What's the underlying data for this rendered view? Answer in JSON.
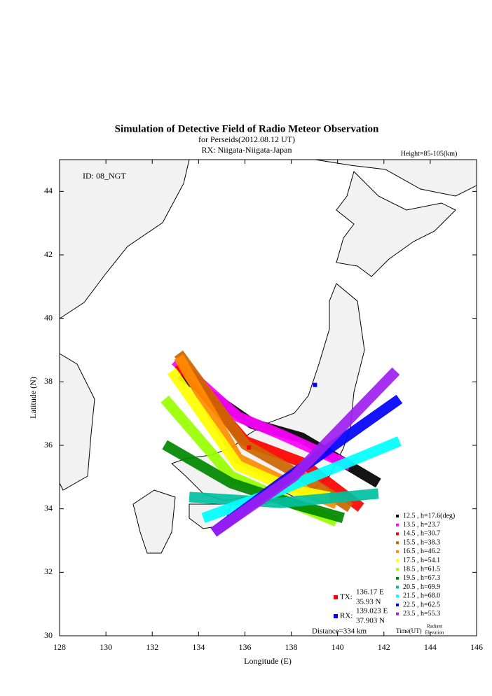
{
  "chart_data": {
    "type": "map",
    "title": "Simulation of Detective Field of Radio Meteor Observation",
    "subtitle": "for Perseids(2012.08.12 UT)",
    "rx_site": "RX: Niigata-Niigata-Japan",
    "height_note": "Height=85-105(km)",
    "id_label": "ID: 08_NGT",
    "x_label": "Longitude (E)",
    "y_label": "Latitude (N)",
    "xlim": [
      128,
      146
    ],
    "ylim": [
      30,
      45
    ],
    "xticks": [
      128,
      130,
      132,
      134,
      136,
      138,
      140,
      142,
      144,
      146
    ],
    "yticks": [
      30,
      32,
      34,
      36,
      38,
      40,
      42,
      44
    ],
    "series": [
      {
        "name": "12.5 , h=17.6(deg)",
        "color": "#000000",
        "lon": [
          133.23,
          136.32,
          138.44,
          141.76
        ],
        "lat": [
          38.23,
          36.68,
          36.24,
          34.81
        ]
      },
      {
        "name": "13.5 , h=23.7",
        "color": "#ff00ff",
        "lon": [
          132.99,
          135.71,
          137.53,
          140.55
        ],
        "lat": [
          38.67,
          36.9,
          36.35,
          35.36
        ]
      },
      {
        "name": "14.5 , h=30.7",
        "color": "#ff0000",
        "lon": [
          133.14,
          136.02,
          138.44,
          141.01
        ],
        "lat": [
          38.56,
          36.13,
          35.47,
          34.04
        ]
      },
      {
        "name": "15.5 , h=38.3",
        "color": "#cc6600",
        "lon": [
          133.14,
          136.02,
          138.44,
          140.55
        ],
        "lat": [
          38.89,
          36.02,
          35.03,
          34.04
        ]
      },
      {
        "name": "16.5 , h=46.2",
        "color": "#ff8c00",
        "lon": [
          133.14,
          135.71,
          138.13,
          139.95
        ],
        "lat": [
          38.78,
          35.58,
          34.7,
          34.15
        ]
      },
      {
        "name": "17.5 , h=54.1",
        "color": "#ffff00",
        "lon": [
          132.84,
          135.71,
          138.13,
          139.65
        ],
        "lat": [
          38.34,
          35.36,
          34.59,
          34.37
        ]
      },
      {
        "name": "18.5 , h=61.5",
        "color": "#99ff00",
        "lon": [
          132.54,
          135.41,
          138.13,
          139.95
        ],
        "lat": [
          37.46,
          35.03,
          34.15,
          33.6
        ]
      },
      {
        "name": "19.5 , h=67.3",
        "color": "#008800",
        "lon": [
          132.54,
          135.41,
          138.13,
          140.25
        ],
        "lat": [
          36.02,
          34.81,
          34.15,
          33.71
        ]
      },
      {
        "name": "20.5 , h=69.9",
        "color": "#00c0a0",
        "lon": [
          133.6,
          137.53,
          141.76
        ],
        "lat": [
          34.37,
          34.19,
          34.48
        ]
      },
      {
        "name": "21.5 , h=68.0",
        "color": "#00ffff",
        "lon": [
          134.2,
          137.53,
          142.67
        ],
        "lat": [
          33.71,
          34.59,
          36.13
        ]
      },
      {
        "name": "22.5 , h=62.5",
        "color": "#0000ff",
        "lon": [
          134.65,
          137.53,
          142.67
        ],
        "lat": [
          33.26,
          34.81,
          37.46
        ]
      },
      {
        "name": "23.5 , h=55.3",
        "color": "#a020f0",
        "lon": [
          134.65,
          138.13,
          142.52
        ],
        "lat": [
          33.26,
          35.03,
          38.34
        ]
      }
    ],
    "tx": {
      "label": "TX:",
      "color": "#ff0000",
      "lon": 136.17,
      "lon_label": "136.17 E",
      "lat": 35.93,
      "lat_label": "35.93 N"
    },
    "rx": {
      "label": "RX:",
      "color": "#0000ff",
      "lon": 139.023,
      "lon_label": "139.023 E",
      "lat": 37.903,
      "lat_label": "37.903 N"
    },
    "distance": "Distance=334 km",
    "legend_time": "Time(UT)",
    "legend_radiant": "Radiant",
    "legend_elevation": "Elevation"
  }
}
